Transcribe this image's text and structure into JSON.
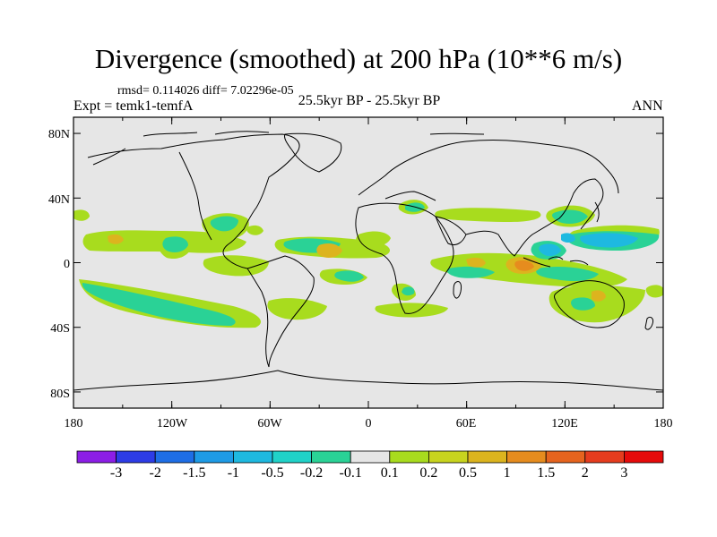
{
  "header": {
    "title": "Divergence (smoothed) at 200 hPa (10**6 m/s)",
    "stats": "rmsd= 0.114026 diff= 7.02296e-05",
    "subtitle": "25.5kyr BP - 25.5kyr BP",
    "experiment": "Expt = temk1-temfA",
    "season": "ANN"
  },
  "map": {
    "lat_labels": [
      "80N",
      "40N",
      "0",
      "40S",
      "80S"
    ],
    "lon_labels": [
      "180",
      "120W",
      "60W",
      "0",
      "60E",
      "120E",
      "180"
    ],
    "background_color": "#e6e6e6"
  },
  "colorbar": {
    "labels": [
      "-3",
      "-2",
      "-1.5",
      "-1",
      "-0.5",
      "-0.2",
      "-0.1",
      "0.1",
      "0.2",
      "0.5",
      "1",
      "1.5",
      "2",
      "3"
    ],
    "colors": [
      "#8c1ee6",
      "#2d3ce6",
      "#1e6ee6",
      "#1e9be6",
      "#1eb9e0",
      "#20d2c8",
      "#2ad296",
      "#e6e6e6",
      "#a8dc1e",
      "#c8d41e",
      "#dcb41e",
      "#e68c1e",
      "#e6641e",
      "#e63c1e",
      "#e60a0a"
    ]
  }
}
